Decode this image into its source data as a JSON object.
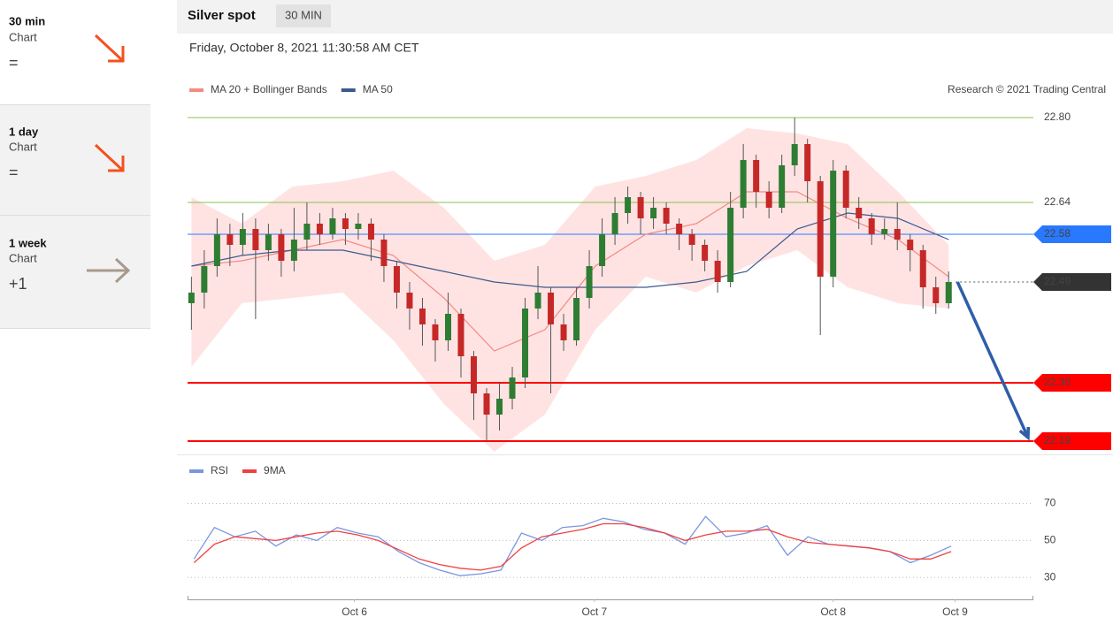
{
  "sidebar": {
    "items": [
      {
        "period": "30 min",
        "label": "Chart",
        "signal": "="
      },
      {
        "period": "1 day",
        "label": "Chart",
        "signal": "="
      },
      {
        "period": "1 week",
        "label": "Chart",
        "signal": "+1"
      }
    ]
  },
  "header": {
    "title": "Silver spot",
    "timeframe": "30 MIN",
    "timestamp": "Friday, October 8, 2021 11:30:58 AM CET"
  },
  "chart_data": [
    {
      "type": "candlestick",
      "credit": "Research © 2021 Trading Central",
      "up_color": "#2e7d32",
      "down_color": "#c62828",
      "open": [
        22.45,
        22.47,
        22.52,
        22.58,
        22.56,
        22.59,
        22.55,
        22.58,
        22.53,
        22.57,
        22.6,
        22.58,
        22.61,
        22.59,
        22.6,
        22.57,
        22.52,
        22.47,
        22.44,
        22.41,
        22.38,
        22.43,
        22.35,
        22.28,
        22.24,
        22.27,
        22.31,
        22.44,
        22.47,
        22.41,
        22.38,
        22.46,
        22.52,
        22.58,
        22.62,
        22.65,
        22.61,
        22.63,
        22.6,
        22.58,
        22.56,
        22.53,
        22.49,
        22.63,
        22.72,
        22.66,
        22.63,
        22.71,
        22.75,
        22.68,
        22.5,
        22.7,
        22.63,
        22.61,
        22.58,
        22.59,
        22.57,
        22.55,
        22.48,
        22.45
      ],
      "high": [
        22.5,
        22.55,
        22.61,
        22.6,
        22.62,
        22.61,
        22.6,
        22.59,
        22.63,
        22.64,
        22.62,
        22.63,
        22.62,
        22.62,
        22.61,
        22.58,
        22.53,
        22.49,
        22.46,
        22.42,
        22.47,
        22.44,
        22.36,
        22.29,
        22.3,
        22.33,
        22.46,
        22.52,
        22.48,
        22.43,
        22.48,
        22.55,
        22.61,
        22.65,
        22.67,
        22.66,
        22.65,
        22.64,
        22.61,
        22.59,
        22.57,
        22.55,
        22.66,
        22.75,
        22.73,
        22.68,
        22.73,
        22.8,
        22.76,
        22.69,
        22.72,
        22.71,
        22.65,
        22.62,
        22.61,
        22.64,
        22.58,
        22.56,
        22.5,
        22.51
      ],
      "low": [
        22.4,
        22.44,
        22.5,
        22.52,
        22.54,
        22.42,
        22.53,
        22.5,
        22.51,
        22.55,
        22.56,
        22.57,
        22.56,
        22.57,
        22.53,
        22.49,
        22.44,
        22.4,
        22.37,
        22.34,
        22.36,
        22.31,
        22.23,
        22.19,
        22.21,
        22.25,
        22.29,
        22.42,
        22.28,
        22.36,
        22.37,
        22.44,
        22.5,
        22.56,
        22.6,
        22.58,
        22.59,
        22.58,
        22.55,
        22.53,
        22.51,
        22.47,
        22.48,
        22.61,
        22.63,
        22.61,
        22.62,
        22.69,
        22.64,
        22.39,
        22.48,
        22.61,
        22.59,
        22.56,
        22.57,
        22.55,
        22.51,
        22.44,
        22.43,
        22.44
      ],
      "close": [
        22.47,
        22.52,
        22.58,
        22.56,
        22.59,
        22.55,
        22.58,
        22.53,
        22.57,
        22.6,
        22.58,
        22.61,
        22.59,
        22.6,
        22.57,
        22.52,
        22.47,
        22.44,
        22.41,
        22.38,
        22.43,
        22.35,
        22.28,
        22.24,
        22.27,
        22.31,
        22.44,
        22.47,
        22.41,
        22.38,
        22.46,
        22.52,
        22.58,
        22.62,
        22.65,
        22.61,
        22.63,
        22.6,
        22.58,
        22.56,
        22.53,
        22.49,
        22.63,
        22.72,
        22.66,
        22.63,
        22.71,
        22.75,
        22.68,
        22.5,
        22.7,
        22.63,
        22.61,
        22.58,
        22.59,
        22.57,
        22.55,
        22.48,
        22.45,
        22.49
      ],
      "band": {
        "color": "#ffe3e3",
        "upper": [
          22.65,
          22.6,
          22.67,
          22.68,
          22.7,
          22.63,
          22.53,
          22.56,
          22.67,
          22.69,
          22.72,
          22.78,
          22.77,
          22.75,
          22.66,
          22.56
        ],
        "lower": [
          22.33,
          22.45,
          22.46,
          22.47,
          22.38,
          22.26,
          22.17,
          22.24,
          22.4,
          22.5,
          22.47,
          22.52,
          22.55,
          22.48,
          22.45,
          22.44
        ]
      },
      "lines": [
        {
          "name": "MA 20 + Bollinger Bands",
          "color": "#f28b82",
          "values": [
            22.52,
            22.53,
            22.55,
            22.57,
            22.54,
            22.46,
            22.36,
            22.4,
            22.52,
            22.58,
            22.6,
            22.66,
            22.66,
            22.61,
            22.57,
            22.5
          ]
        },
        {
          "name": "MA 50",
          "color": "#3d5a8f",
          "values": [
            22.52,
            22.54,
            22.55,
            22.55,
            22.53,
            22.51,
            22.49,
            22.48,
            22.48,
            22.48,
            22.49,
            22.51,
            22.59,
            22.62,
            22.61,
            22.57
          ]
        }
      ],
      "levels": [
        {
          "value": 22.8,
          "label": "22.80",
          "color": "#8bc34a",
          "style": "line"
        },
        {
          "value": 22.64,
          "color": "#8bc34a",
          "style": "line"
        },
        {
          "value": 22.58,
          "color": "#2979ff",
          "style": "line-badge"
        },
        {
          "value": 22.49,
          "color": "#333333",
          "style": "dotted-badge"
        },
        {
          "value": 22.3,
          "label": "22.30",
          "color": "#ff0000",
          "style": "bold-line-badge"
        },
        {
          "value": 22.19,
          "color": "#ff0000",
          "style": "bold-line-badge"
        }
      ],
      "forecast": {
        "from": 22.49,
        "to": 22.19,
        "color": "#2f5ea8"
      },
      "xlim": [
        -0.3,
        65.6
      ],
      "ylim": [
        22.17,
        22.83
      ]
    },
    {
      "type": "line",
      "series": [
        {
          "name": "RSI",
          "color": "#7b96e0",
          "values": [
            40,
            57,
            52,
            55,
            47,
            53,
            50,
            57,
            54,
            52,
            44,
            38,
            34,
            31,
            32,
            34,
            54,
            50,
            57,
            58,
            62,
            60,
            56,
            54,
            48,
            63,
            52,
            54,
            58,
            42,
            52,
            48,
            47,
            46,
            44,
            38,
            42,
            47
          ]
        },
        {
          "name": "9MA",
          "color": "#f04040",
          "values": [
            38,
            48,
            52,
            51,
            50,
            52,
            54,
            55,
            53,
            50,
            45,
            40,
            37,
            35,
            34,
            36,
            46,
            52,
            54,
            56,
            59,
            59,
            57,
            54,
            50,
            53,
            55,
            55,
            56,
            52,
            49,
            48,
            47,
            46,
            44,
            40,
            40,
            44
          ]
        }
      ],
      "ylim": [
        22,
        86
      ],
      "yticks": [
        30,
        50,
        70
      ],
      "grid": true,
      "xlim": [
        -0.3,
        65.6
      ],
      "xticks": [
        {
          "value": 12.7,
          "label": "Oct 6"
        },
        {
          "value": 31.4,
          "label": "Oct 7"
        },
        {
          "value": 50.0,
          "label": "Oct 8"
        },
        {
          "value": 59.5,
          "label": "Oct 9"
        }
      ]
    }
  ]
}
